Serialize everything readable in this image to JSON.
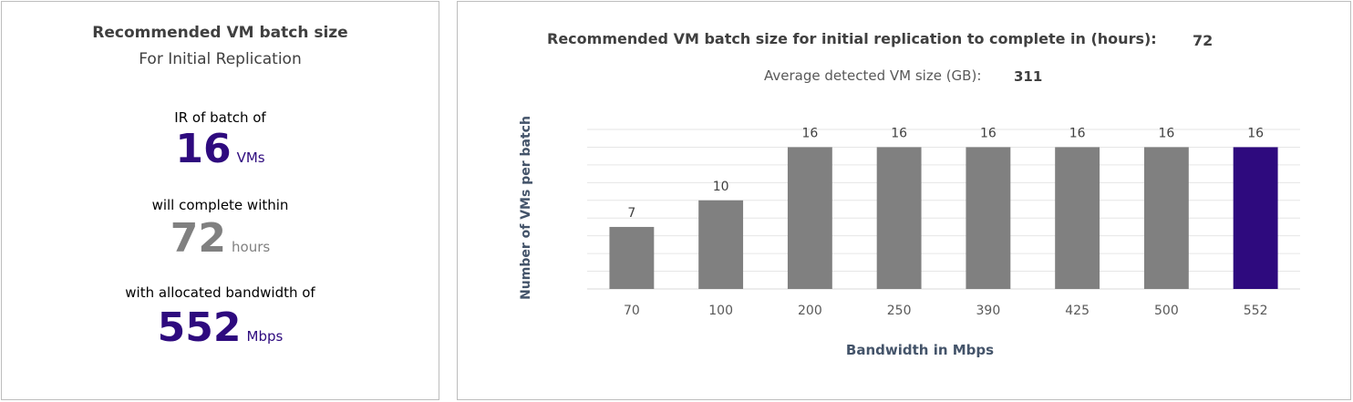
{
  "summary": {
    "title": "Recommended VM batch size",
    "subtitle": "For Initial Replication",
    "batch_label": "IR of batch of",
    "batch_value": "16",
    "batch_unit": "VMs",
    "complete_label": "will complete within",
    "hours_value": "72",
    "hours_unit": "hours",
    "bandwidth_label": "with allocated bandwidth of",
    "bandwidth_value": "552",
    "bandwidth_unit": "Mbps"
  },
  "header": {
    "title": "Recommended VM batch size for initial replication to complete in (hours):",
    "hours_value": "72",
    "avg_label": "Average detected VM size (GB):",
    "avg_value": "311"
  },
  "colors": {
    "bar": "#808080",
    "highlight": "#2e0a7e",
    "grid": "#e6e6e6"
  },
  "chart_data": {
    "type": "bar",
    "categories": [
      "70",
      "100",
      "200",
      "250",
      "390",
      "425",
      "500",
      "552"
    ],
    "values": [
      7,
      10,
      16,
      16,
      16,
      16,
      16,
      16
    ],
    "highlight_category": "552",
    "xlabel": "Bandwidth in Mbps",
    "ylabel": "Number of VMs per batch",
    "ylim": [
      0,
      18
    ],
    "grid": true,
    "data_labels": true
  }
}
